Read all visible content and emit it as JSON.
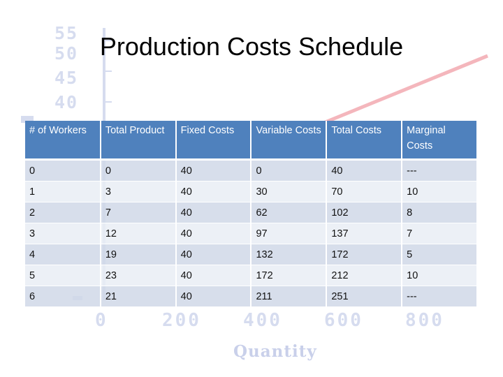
{
  "title": "Production Costs Schedule",
  "background_chart": {
    "y_ticks": [
      "55",
      "50",
      "45",
      "40"
    ],
    "x_ticks": [
      "0",
      "200",
      "400",
      "600",
      "800"
    ],
    "xlabel": "Quantity"
  },
  "table": {
    "headers": [
      "# of Workers",
      "Total Product",
      "Fixed Costs",
      "Variable Costs",
      "Total Costs",
      "Marginal Costs"
    ],
    "rows": [
      [
        "0",
        "0",
        "40",
        "0",
        "40",
        "---"
      ],
      [
        "1",
        "3",
        "40",
        "30",
        "70",
        "10"
      ],
      [
        "2",
        "7",
        "40",
        "62",
        "102",
        "8"
      ],
      [
        "3",
        "12",
        "40",
        "97",
        "137",
        "7"
      ],
      [
        "4",
        "19",
        "40",
        "132",
        "172",
        "5"
      ],
      [
        "5",
        "23",
        "40",
        "172",
        "212",
        "10"
      ],
      [
        "6",
        "21",
        "40",
        "211",
        "251",
        "---"
      ]
    ]
  },
  "colors": {
    "header_bg": "#4f81bd",
    "row_odd": "#d0d8e8",
    "row_even": "#e9edf4",
    "bg_line": "#f4b6bc"
  }
}
